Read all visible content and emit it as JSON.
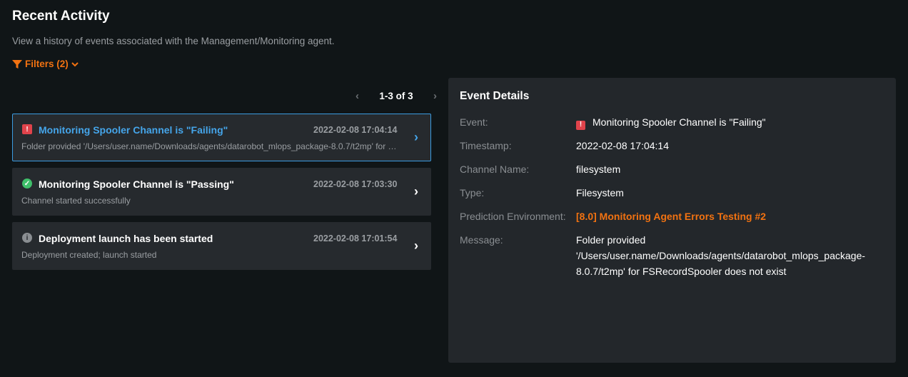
{
  "header": {
    "title": "Recent Activity",
    "subtitle": "View a history of events associated with the Management/Monitoring agent.",
    "filters_label": "Filters (2)"
  },
  "pagination": {
    "label": "1-3 of 3"
  },
  "events": [
    {
      "title": "Monitoring Spooler Channel is \"Failing\"",
      "timestamp": "2022-02-08 17:04:14",
      "message": "Folder provided '/Users/user.name/Downloads/agents/datarobot_mlops_package-8.0.7/t2mp' for FSRecordSpooler does not exist",
      "status": "error",
      "selected": true
    },
    {
      "title": "Monitoring Spooler Channel is \"Passing\"",
      "timestamp": "2022-02-08 17:03:30",
      "message": "Channel started successfully",
      "status": "success"
    },
    {
      "title": "Deployment launch has been started",
      "timestamp": "2022-02-08 17:01:54",
      "message": "Deployment created; launch started",
      "status": "info"
    }
  ],
  "details": {
    "title": "Event Details",
    "labels": {
      "event": "Event:",
      "timestamp": "Timestamp:",
      "channel": "Channel Name:",
      "type": "Type:",
      "env": "Prediction Environment:",
      "message": "Message:"
    },
    "event": "Monitoring Spooler Channel is \"Failing\"",
    "timestamp": "2022-02-08 17:04:14",
    "channel": "filesystem",
    "type": "Filesystem",
    "env": "[8.0] Monitoring Agent Errors Testing #2",
    "message": "Folder provided '/Users/user.name/Downloads/agents/datarobot_mlops_package-8.0.7/t2mp' for FSRecordSpooler does not exist"
  },
  "colors": {
    "accent": "#f27211",
    "selected": "#45a5ea",
    "error": "#e0434b",
    "success": "#3fbf6a"
  }
}
